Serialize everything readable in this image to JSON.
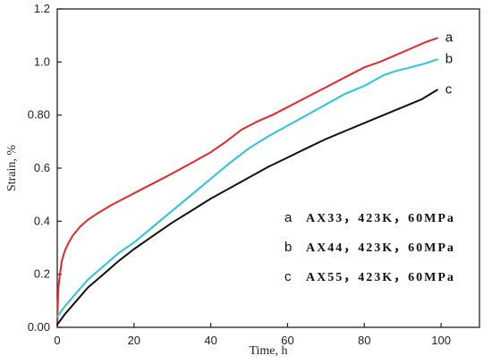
{
  "chart_data": {
    "type": "line",
    "xlabel": "Time, h",
    "ylabel": "Strain, %",
    "xlim": [
      0,
      110
    ],
    "ylim": [
      0,
      1.2
    ],
    "x_ticks": [
      "0",
      "20",
      "40",
      "60",
      "80",
      "100"
    ],
    "y_ticks": [
      "0.00",
      "0.2",
      "0.4",
      "0.6",
      "0.80",
      "1.0",
      "1.2"
    ],
    "grid": false,
    "legend_position": "center-right",
    "series": [
      {
        "name": "AX33, 423K, 60MPa",
        "label": "a",
        "legend_prefix": "a",
        "legend_text": "AX33，423K，60MPa",
        "color": "#e8262a",
        "x": [
          0,
          0.3,
          0.7,
          1.2,
          2,
          3,
          4,
          6,
          8,
          10,
          14,
          18,
          22,
          26,
          30,
          35,
          40,
          44,
          48,
          52,
          56,
          60,
          64,
          68,
          72,
          76,
          80,
          84,
          88,
          92,
          96,
          99
        ],
        "y": [
          0.02,
          0.15,
          0.2,
          0.25,
          0.29,
          0.32,
          0.345,
          0.38,
          0.405,
          0.425,
          0.46,
          0.49,
          0.52,
          0.55,
          0.58,
          0.62,
          0.66,
          0.7,
          0.745,
          0.775,
          0.8,
          0.83,
          0.86,
          0.89,
          0.92,
          0.95,
          0.98,
          1.0,
          1.025,
          1.05,
          1.075,
          1.09
        ]
      },
      {
        "name": "AX44, 423K, 60MPa",
        "label": "b",
        "legend_prefix": "b",
        "legend_text": "AX44，423K，60MPa",
        "color": "#27c4e0",
        "x": [
          0,
          2,
          5,
          8,
          12,
          16,
          20,
          25,
          30,
          35,
          40,
          45,
          50,
          55,
          60,
          65,
          70,
          75,
          80,
          85,
          88,
          92,
          96,
          99
        ],
        "y": [
          0.04,
          0.08,
          0.13,
          0.18,
          0.23,
          0.28,
          0.32,
          0.38,
          0.44,
          0.5,
          0.56,
          0.62,
          0.675,
          0.72,
          0.76,
          0.8,
          0.84,
          0.88,
          0.91,
          0.95,
          0.965,
          0.98,
          0.995,
          1.01
        ]
      },
      {
        "name": "AX55, 423K, 60MPa",
        "label": "c",
        "legend_prefix": "c",
        "legend_text": "AX55，423K，60MPa",
        "color": "#111111",
        "x": [
          0,
          2,
          5,
          8,
          12,
          16,
          20,
          25,
          30,
          35,
          40,
          45,
          50,
          55,
          60,
          65,
          70,
          75,
          80,
          85,
          90,
          95,
          99
        ],
        "y": [
          0.01,
          0.05,
          0.1,
          0.15,
          0.2,
          0.25,
          0.295,
          0.345,
          0.395,
          0.44,
          0.485,
          0.525,
          0.565,
          0.605,
          0.64,
          0.675,
          0.71,
          0.74,
          0.77,
          0.8,
          0.83,
          0.86,
          0.895
        ]
      }
    ]
  }
}
